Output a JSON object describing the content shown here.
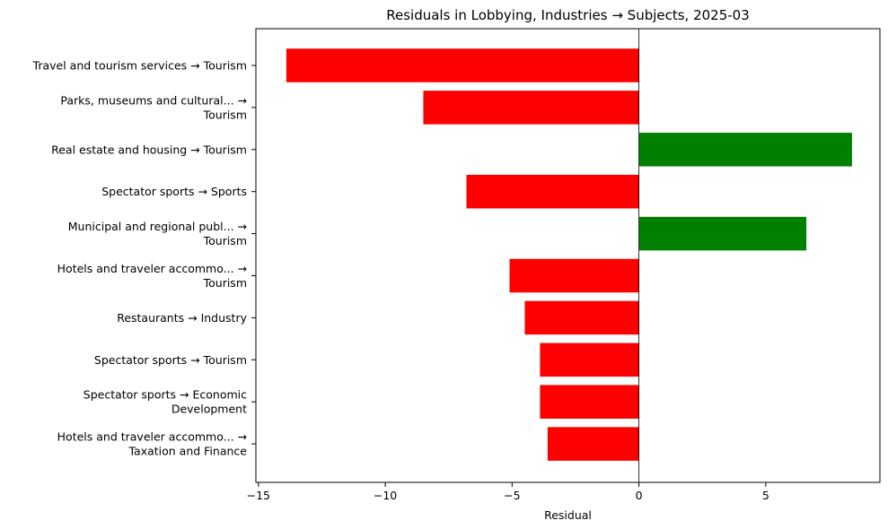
{
  "chart_data": {
    "type": "bar",
    "orientation": "horizontal",
    "title": "Residuals in Lobbying, Industries → Subjects, 2025-03",
    "xlabel": "Residual",
    "ylabel": "",
    "xlim": [
      -15.1,
      9.5
    ],
    "xticks": [
      -15,
      -10,
      -5,
      0,
      5
    ],
    "grid": false,
    "legend": "none",
    "colors": {
      "positive": "#008000",
      "negative": "#ff0000",
      "zero_line": "#000000"
    },
    "categories": [
      [
        "Travel and tourism services → Tourism"
      ],
      [
        "Parks, museums and cultural... →",
        "Tourism"
      ],
      [
        "Real estate and housing → Tourism"
      ],
      [
        "Spectator sports → Sports"
      ],
      [
        "Municipal and regional publ... →",
        "Tourism"
      ],
      [
        "Hotels and traveler accommo... →",
        "Tourism"
      ],
      [
        "Restaurants → Industry"
      ],
      [
        "Spectator sports → Tourism"
      ],
      [
        "Spectator sports → Economic",
        "Development"
      ],
      [
        "Hotels and traveler accommo... →",
        "Taxation and Finance"
      ]
    ],
    "values": [
      -13.9,
      -8.5,
      8.4,
      -6.8,
      6.6,
      -5.1,
      -4.5,
      -3.9,
      -3.9,
      -3.6
    ]
  }
}
